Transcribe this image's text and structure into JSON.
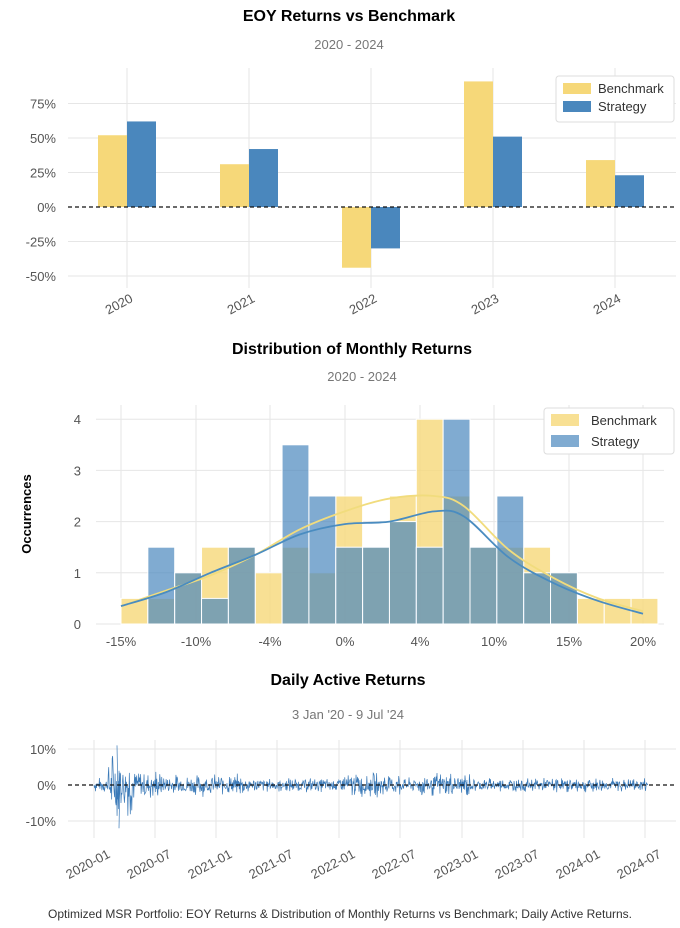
{
  "colors": {
    "benchmark": "#f6d879",
    "strategy": "#4a87bd",
    "active": "#3b7ab8"
  },
  "caption": "Optimized MSR Portfolio: EOY Returns & Distribution of Monthly Returns vs Benchmark; Daily Active Returns.",
  "chart_data": [
    {
      "type": "bar",
      "title": "EOY Returns  vs Benchmark",
      "subtitle": "2020 - 2024",
      "categories": [
        "2020",
        "2021",
        "2022",
        "2023",
        "2024"
      ],
      "series": [
        {
          "name": "Benchmark",
          "values": [
            52,
            31,
            -44,
            91,
            34
          ]
        },
        {
          "name": "Strategy",
          "values": [
            62,
            42,
            -30,
            51,
            23
          ]
        }
      ],
      "yticks": [
        -50,
        -25,
        0,
        25,
        50,
        75
      ],
      "ytick_labels": [
        "-50%",
        "-25%",
        "0%",
        "25%",
        "50%",
        "75%"
      ],
      "ylim": [
        -52,
        92
      ],
      "legend": "top-right",
      "grid": true
    },
    {
      "type": "bar",
      "title": "Distribution of Monthly Returns",
      "subtitle": "2020 - 2024",
      "ylabel": "Occurrences",
      "bin_edges": [
        -15,
        -13.2,
        -11.4,
        -9.6,
        -7.8,
        -6.0,
        -4.2,
        -2.4,
        -0.6,
        1.2,
        3.0,
        4.8,
        6.6,
        8.4,
        10.2,
        12.0,
        13.8,
        15.6,
        17.4,
        19.2,
        21.0
      ],
      "series": [
        {
          "name": "Benchmark",
          "values": [
            0.5,
            0.5,
            1,
            1.5,
            1.5,
            1,
            1.5,
            1,
            2.5,
            1.5,
            2.5,
            4,
            2.5,
            1.5,
            1.5,
            1.5,
            1,
            0.5,
            0.5,
            0.5
          ]
        },
        {
          "name": "Strategy",
          "values": [
            0,
            1.5,
            1,
            0.5,
            1.5,
            0,
            3.5,
            2.5,
            1.5,
            1.5,
            2,
            1.5,
            4,
            1.5,
            2.5,
            1,
            1,
            0,
            0,
            0
          ]
        }
      ],
      "kde": {
        "x": [
          -15,
          -12,
          -9,
          -6,
          -3,
          0,
          3,
          6,
          8,
          11,
          14,
          17,
          20
        ],
        "Benchmark": [
          0.35,
          0.65,
          0.95,
          1.35,
          1.85,
          2.2,
          2.45,
          2.5,
          2.3,
          1.45,
          0.9,
          0.5,
          0.25
        ],
        "Strategy": [
          0.35,
          0.62,
          1.0,
          1.35,
          1.75,
          1.95,
          2.0,
          2.2,
          2.1,
          1.3,
          0.8,
          0.45,
          0.2
        ]
      },
      "xticks": [
        -15,
        -10,
        -4,
        0,
        4,
        10,
        15,
        20
      ],
      "xtick_labels": [
        "-15%",
        "-10%",
        "-4%",
        "0%",
        "4%",
        "10%",
        "15%",
        "20%"
      ],
      "yticks": [
        0,
        1,
        2,
        3,
        4
      ],
      "ylim": [
        0,
        4.15
      ],
      "legend": "top-right",
      "grid": true
    },
    {
      "type": "line",
      "title": "Daily Active Returns",
      "subtitle": "3 Jan '20 -  9 Jul '24",
      "x_range": [
        "2020-01-03",
        "2024-07-09"
      ],
      "xtick_labels": [
        "2020-01",
        "2020-07",
        "2021-01",
        "2021-07",
        "2022-01",
        "2022-07",
        "2023-01",
        "2023-07",
        "2024-01",
        "2024-07"
      ],
      "yticks": [
        -10,
        0,
        10
      ],
      "ytick_labels": [
        "-10%",
        "0%",
        "10%"
      ],
      "ylim": [
        -13,
        12
      ],
      "extremes": {
        "max": 11,
        "min": -12
      },
      "grid": true
    }
  ]
}
